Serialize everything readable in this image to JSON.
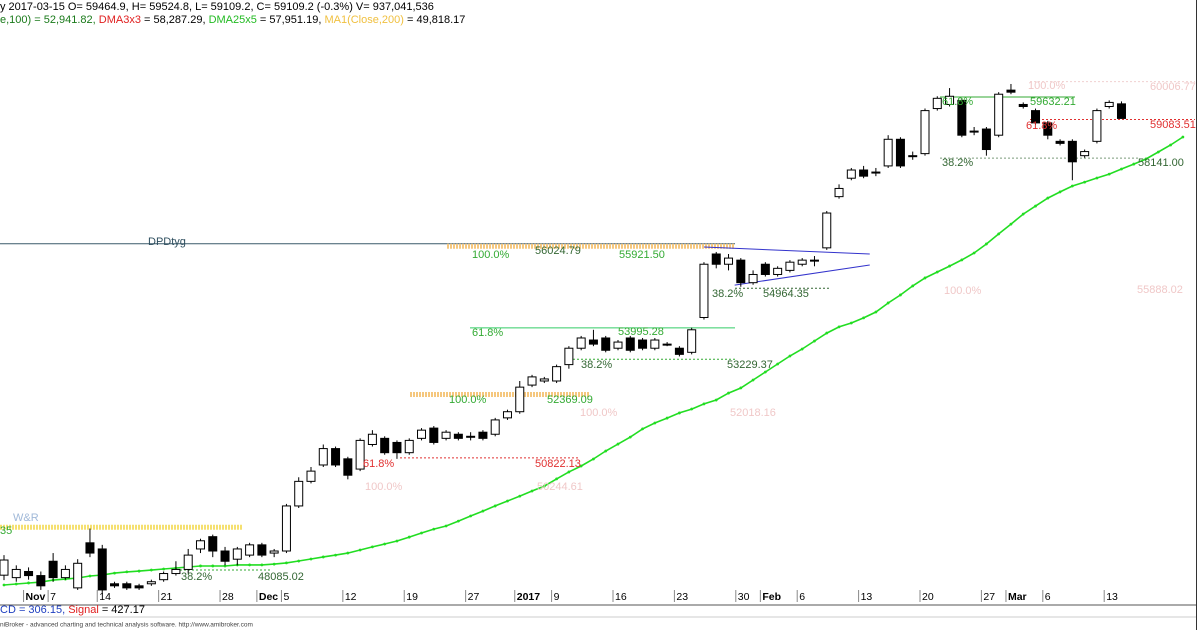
{
  "chart_data": {
    "type": "candlestick",
    "header": [
      {
        "text": "y 2017-03-15 O= 59464.9, H= 59524.8, L= 59109.2, C= 59109.2 (-0.3%) V= 937,041,536",
        "color": "#000000"
      }
    ],
    "header2": [
      {
        "text": "e,100) = 52,941.82, ",
        "color": "#1a7a1a"
      },
      {
        "text": "DMA3x3",
        "color": "#e02020"
      },
      {
        "text": " = 58,287.29, ",
        "color": "#000000"
      },
      {
        "text": "DMA25x5",
        "color": "#22bb22"
      },
      {
        "text": " = 57,951.19, ",
        "color": "#000000"
      },
      {
        "text": "MA1(Close,200)",
        "color": "#f0c040"
      },
      {
        "text": " = 49,818.17",
        "color": "#000000"
      }
    ],
    "indicator": [
      {
        "text": "CD = 306.15, ",
        "color": "#2040c0"
      },
      {
        "text": "Signal",
        "color": "#e02020"
      },
      {
        "text": " = 427.17",
        "color": "#000000"
      }
    ],
    "footer": "niBroker - advanced charting and technical analysis software. http://www.amibroker.com",
    "categories": [
      null,
      null,
      "Nov",
      null,
      "7",
      null,
      null,
      null,
      "14",
      null,
      null,
      null,
      null,
      "21",
      null,
      null,
      null,
      null,
      "28",
      null,
      null,
      "Dec",
      null,
      "5",
      null,
      null,
      null,
      null,
      "12",
      null,
      null,
      null,
      null,
      "19",
      null,
      null,
      null,
      null,
      "27",
      null,
      null,
      null,
      "2017",
      null,
      null,
      "9",
      null,
      null,
      null,
      null,
      "16",
      null,
      null,
      null,
      null,
      "23",
      null,
      null,
      null,
      null,
      "30",
      null,
      "Feb",
      null,
      null,
      "6",
      null,
      null,
      null,
      null,
      "13",
      null,
      null,
      null,
      null,
      "20",
      null,
      null,
      null,
      null,
      "27",
      null,
      "Mar",
      null,
      null,
      "6",
      null,
      null,
      null,
      null,
      "13",
      null,
      null,
      null,
      null,
      null,
      null
    ],
    "open": [
      47960,
      47900,
      48050,
      47950,
      48300,
      47900,
      47650,
      48750,
      48600,
      47750,
      47750,
      47700,
      47750,
      47850,
      48000,
      48100,
      48600,
      48900,
      48550,
      48350,
      48450,
      48700,
      48500,
      48550,
      49650,
      50250,
      50650,
      51050,
      50800,
      50550,
      51150,
      51300,
      51200,
      50950,
      51300,
      51550,
      51300,
      51400,
      51350,
      51450,
      51400,
      51800,
      51950,
      52600,
      52700,
      52700,
      53100,
      53500,
      53700,
      53750,
      53500,
      53750,
      53700,
      53500,
      53600,
      53500,
      53400,
      54250,
      55800,
      55550,
      55650,
      55100,
      55550,
      55300,
      55400,
      55550,
      55650,
      55950,
      57200,
      57650,
      57850,
      57800,
      57950,
      58600,
      58200,
      58250,
      59350,
      59450,
      59550,
      58800,
      58850,
      58700,
      59800,
      59450,
      59300,
      59000,
      58550,
      58550,
      58200,
      58550,
      59400,
      59464.9,
      null,
      null,
      null,
      null,
      null
    ],
    "high": [
      48450,
      48200,
      48150,
      48050,
      48500,
      48200,
      48350,
      49100,
      48700,
      47800,
      47800,
      47750,
      47850,
      48050,
      48300,
      48600,
      48850,
      48950,
      48650,
      48650,
      48750,
      48750,
      48600,
      49700,
      50350,
      50600,
      51150,
      51100,
      50850,
      51300,
      51500,
      51350,
      51250,
      51300,
      51550,
      51600,
      51500,
      51450,
      51450,
      51500,
      51800,
      52000,
      52700,
      52850,
      52800,
      53100,
      53550,
      53800,
      53950,
      53800,
      53700,
      53800,
      53750,
      53750,
      53650,
      53550,
      54000,
      55600,
      55850,
      55800,
      55700,
      55400,
      55600,
      55500,
      55650,
      55700,
      55750,
      56850,
      57500,
      57900,
      57950,
      57900,
      58700,
      58650,
      58300,
      59350,
      59650,
      59850,
      59600,
      58900,
      58900,
      59750,
      59950,
      59500,
      59350,
      59050,
      58600,
      58600,
      58350,
      59350,
      59550,
      59524.8,
      null,
      null,
      null,
      null,
      null
    ],
    "low": [
      47840,
      47800,
      47850,
      47600,
      47800,
      47850,
      47600,
      48400,
      47500,
      47650,
      47600,
      47600,
      47700,
      47800,
      47950,
      48000,
      48500,
      48400,
      48200,
      48200,
      48400,
      48400,
      48400,
      48500,
      49600,
      50200,
      50600,
      50600,
      50300,
      50500,
      51100,
      50900,
      50800,
      50900,
      51250,
      51150,
      51250,
      51250,
      51250,
      51250,
      51350,
      51750,
      51900,
      52550,
      52650,
      52650,
      53000,
      53450,
      53550,
      53400,
      53450,
      53400,
      53450,
      53450,
      53550,
      53300,
      53350,
      54200,
      55450,
      55400,
      55000,
      55050,
      55250,
      55250,
      55350,
      55500,
      55500,
      55900,
      57150,
      57600,
      57650,
      57700,
      57900,
      57900,
      58100,
      58200,
      59300,
      59400,
      58650,
      58700,
      58200,
      58650,
      59700,
      59350,
      58950,
      58600,
      58450,
      57600,
      58150,
      58500,
      59350,
      59109.2,
      null,
      null,
      null,
      null,
      null
    ],
    "close": [
      48330,
      48100,
      47950,
      47700,
      47900,
      48100,
      48250,
      48500,
      47600,
      47700,
      47650,
      47650,
      47800,
      48000,
      48100,
      48450,
      48800,
      48550,
      48300,
      48600,
      48700,
      48450,
      48550,
      49650,
      50250,
      50500,
      51050,
      50650,
      50400,
      51250,
      51400,
      50950,
      50950,
      51250,
      51500,
      51200,
      51450,
      51300,
      51350,
      51300,
      51750,
      51950,
      52550,
      52800,
      52750,
      53050,
      53500,
      53750,
      53600,
      53450,
      53650,
      53450,
      53500,
      53700,
      53600,
      53350,
      53950,
      55550,
      55550,
      55700,
      55100,
      55300,
      55300,
      55450,
      55600,
      55650,
      55650,
      56800,
      57400,
      57850,
      57700,
      57800,
      58600,
      57950,
      58200,
      59300,
      59600,
      59650,
      58700,
      58800,
      58350,
      59700,
      59750,
      59400,
      59000,
      58700,
      58500,
      58050,
      58300,
      59300,
      59500,
      59109.2,
      null,
      null,
      null,
      null,
      null
    ],
    "ma": {
      "color": "#22dd22",
      "values": [
        47720,
        47745,
        47770,
        47790,
        47840,
        47865,
        47890,
        47940,
        47965,
        48010,
        48040,
        48060,
        48085,
        48110,
        48135,
        48160,
        48185,
        48185,
        48185,
        48210,
        48210,
        48210,
        48230,
        48260,
        48305,
        48355,
        48405,
        48450,
        48500,
        48575,
        48650,
        48720,
        48795,
        48890,
        48990,
        49085,
        49160,
        49280,
        49405,
        49525,
        49650,
        49770,
        49890,
        50015,
        50135,
        50310,
        50480,
        50625,
        50795,
        50990,
        51160,
        51330,
        51530,
        51675,
        51795,
        51920,
        52015,
        52140,
        52235,
        52405,
        52530,
        52725,
        52920,
        53115,
        53310,
        53480,
        53675,
        53870,
        54020,
        54115,
        54240,
        54385,
        54605,
        54800,
        55020,
        55215,
        55360,
        55505,
        55655,
        55825,
        56045,
        56290,
        56530,
        56775,
        56970,
        57165,
        57315,
        57460,
        57555,
        57655,
        57750,
        57875,
        57995,
        58120,
        58290,
        58460,
        58655
      ]
    },
    "ylim": [
      47232,
      62000
    ],
    "levels": [
      {
        "value": 56050,
        "color": "#3a5a6a",
        "style": "solid"
      },
      {
        "value": 55990,
        "color": "#f5c77e",
        "style": "band"
      },
      {
        "value": 53995.28,
        "color": "#33cc66",
        "style": "solid"
      },
      {
        "value": 53229.37,
        "color": "#33aa33",
        "style": "dotted"
      },
      {
        "value": 52369.09,
        "color": "#f5c77e",
        "style": "band"
      },
      {
        "value": 50822.13,
        "color": "#e03030",
        "style": "dotted"
      },
      {
        "value": 49130,
        "color": "#f5e070",
        "style": "band"
      },
      {
        "value": 48085.02,
        "color": "#33aa33",
        "style": "dotted"
      },
      {
        "value": 54964.35,
        "color": "#336633",
        "style": "dotted"
      },
      {
        "value": 59632.21,
        "color": "#33aa33",
        "style": "solid"
      },
      {
        "value": 59083.51,
        "color": "#e03030",
        "style": "dotted"
      },
      {
        "value": 58141,
        "color": "#7a9a7a",
        "style": "dotted"
      },
      {
        "value": 60006.77,
        "color": "#f0d0d0",
        "style": "dotted"
      }
    ],
    "trendlines": [
      {
        "color": "#3333cc",
        "x": [
          57,
          70.5
        ],
        "y": [
          55970,
          55800
        ]
      },
      {
        "color": "#3333cc",
        "x": [
          59.5,
          70.5
        ],
        "y": [
          55040,
          55530
        ]
      }
    ],
    "annotations": [
      {
        "text": "DPDtyg",
        "color": "#2f4f5f"
      },
      {
        "text": "100.0%",
        "color": "#33aa33"
      },
      {
        "text": "56024.79",
        "color": "#336633"
      },
      {
        "text": "55921.50",
        "color": "#33aa33"
      },
      {
        "text": "38.2%",
        "color": "#336633"
      },
      {
        "text": "54964.35",
        "color": "#336633"
      },
      {
        "text": "61.8%",
        "color": "#33aa33"
      },
      {
        "text": "53995.28",
        "color": "#33aa33"
      },
      {
        "text": "38.2%",
        "color": "#336633"
      },
      {
        "text": "53229.37",
        "color": "#336633"
      },
      {
        "text": "100.0%",
        "color": "#33aa33"
      },
      {
        "text": "52369.09",
        "color": "#33aa33"
      },
      {
        "text": "100.0%",
        "color": "#f0c8c8"
      },
      {
        "text": "52018.16",
        "color": "#f0c8c8"
      },
      {
        "text": "61.8%",
        "color": "#e03030"
      },
      {
        "text": "50822.13",
        "color": "#e03030"
      },
      {
        "text": "100.0%",
        "color": "#f0c8c8"
      },
      {
        "text": "50244.61",
        "color": "#f0c8c8"
      },
      {
        "text": "W&R",
        "color": "#a0b8d8"
      },
      {
        "text": "35",
        "color": "#33aa33"
      },
      {
        "text": "38.2%",
        "color": "#336633"
      },
      {
        "text": "48085.02",
        "color": "#336633"
      },
      {
        "text": "100.0%",
        "color": "#f0c8c8"
      },
      {
        "text": "60006.77",
        "color": "#f0c8c8"
      },
      {
        "text": "61.8%",
        "color": "#33aa33"
      },
      {
        "text": "59632.21",
        "color": "#33aa33"
      },
      {
        "text": "61.8%",
        "color": "#e03030"
      },
      {
        "text": "59083.51",
        "color": "#e03030"
      },
      {
        "text": "38.2%",
        "color": "#336633"
      },
      {
        "text": "58141.00",
        "color": "#336633"
      },
      {
        "text": "100.0%",
        "color": "#f0c8c8"
      },
      {
        "text": "55888.02",
        "color": "#f0c8c8"
      }
    ]
  }
}
